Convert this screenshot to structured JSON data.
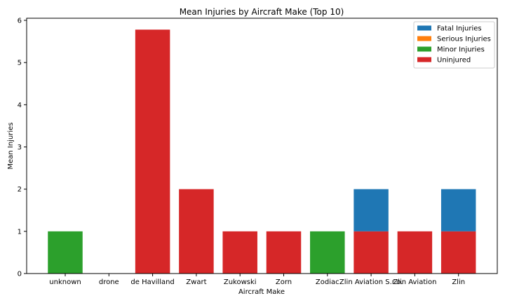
{
  "chart_data": {
    "type": "bar",
    "stacked": true,
    "title": "Mean Injuries by Aircraft Make (Top 10)",
    "xlabel": "Aircraft Make",
    "ylabel": "Mean Injuries",
    "ylim": [
      0,
      6.05
    ],
    "yticks": [
      0,
      1,
      2,
      3,
      4,
      5,
      6
    ],
    "grid": false,
    "legend_position": "top-right",
    "categories": [
      "unknown",
      "drone",
      "de Havilland",
      "Zwart",
      "Zukowski",
      "Zorn",
      "Zodiac",
      "Zlin Aviation S.r.o.",
      "Zlin Aviation",
      "Zlin"
    ],
    "series": [
      {
        "name": "Uninjured",
        "color": "#d62728",
        "values": [
          0,
          0,
          5.78,
          2,
          1,
          1,
          0,
          1,
          1,
          1
        ]
      },
      {
        "name": "Minor Injuries",
        "color": "#2ca02c",
        "values": [
          1,
          0,
          0,
          0,
          0,
          0,
          1,
          0,
          0,
          0
        ]
      },
      {
        "name": "Serious Injuries",
        "color": "#ff7f0e",
        "values": [
          0,
          0,
          0,
          0,
          0,
          0,
          0,
          0,
          0,
          0
        ]
      },
      {
        "name": "Fatal Injuries",
        "color": "#1f77b4",
        "values": [
          0,
          0,
          0,
          0,
          0,
          0,
          0,
          1,
          0,
          1
        ]
      }
    ],
    "legend_order": [
      "Fatal Injuries",
      "Serious Injuries",
      "Minor Injuries",
      "Uninjured"
    ]
  }
}
